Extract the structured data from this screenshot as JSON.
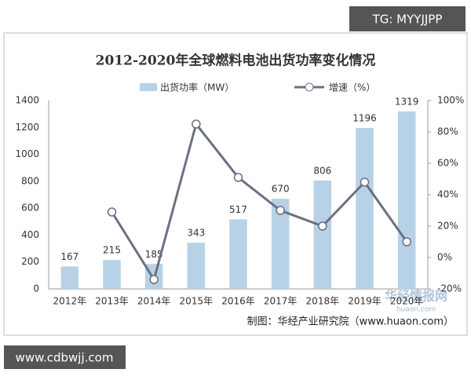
{
  "watermark_top": "TG: MYYJJPP",
  "watermark_bottom": "www.cdbwjj.com",
  "chart_data": {
    "type": "bar",
    "title": "2012-2020年全球燃料电池出货功率变化情况",
    "categories": [
      "2012年",
      "2013年",
      "2014年",
      "2015年",
      "2016年",
      "2017年",
      "2018年",
      "2019年",
      "2020年"
    ],
    "series": [
      {
        "name": "出货功率（MW）",
        "type": "bar",
        "color": "#b7d2e6",
        "values": [
          167,
          215,
          185,
          343,
          517,
          670,
          806,
          1196,
          1319
        ]
      },
      {
        "name": "增速（%）",
        "type": "line",
        "axis": "y2",
        "color": "#6b7082",
        "values": [
          null,
          29,
          -14,
          85,
          51,
          30,
          20,
          48,
          10
        ]
      }
    ],
    "ylim": [
      0,
      1400
    ],
    "yticks": [
      0,
      200,
      400,
      600,
      800,
      1000,
      1200,
      1400
    ],
    "y2lim": [
      -20,
      100
    ],
    "y2ticks": [
      {
        "value": -20,
        "label": "-20%"
      },
      {
        "value": 0,
        "label": "0%"
      },
      {
        "value": 20,
        "label": "20%"
      },
      {
        "value": 40,
        "label": "40%"
      },
      {
        "value": 60,
        "label": "60%"
      },
      {
        "value": 80,
        "label": "80%"
      },
      {
        "value": 100,
        "label": "100%"
      }
    ],
    "source": "制图：华经产业研究院（www.huaon.com）",
    "logo_text": "华经情报网",
    "logo_url": "huaon.com"
  }
}
